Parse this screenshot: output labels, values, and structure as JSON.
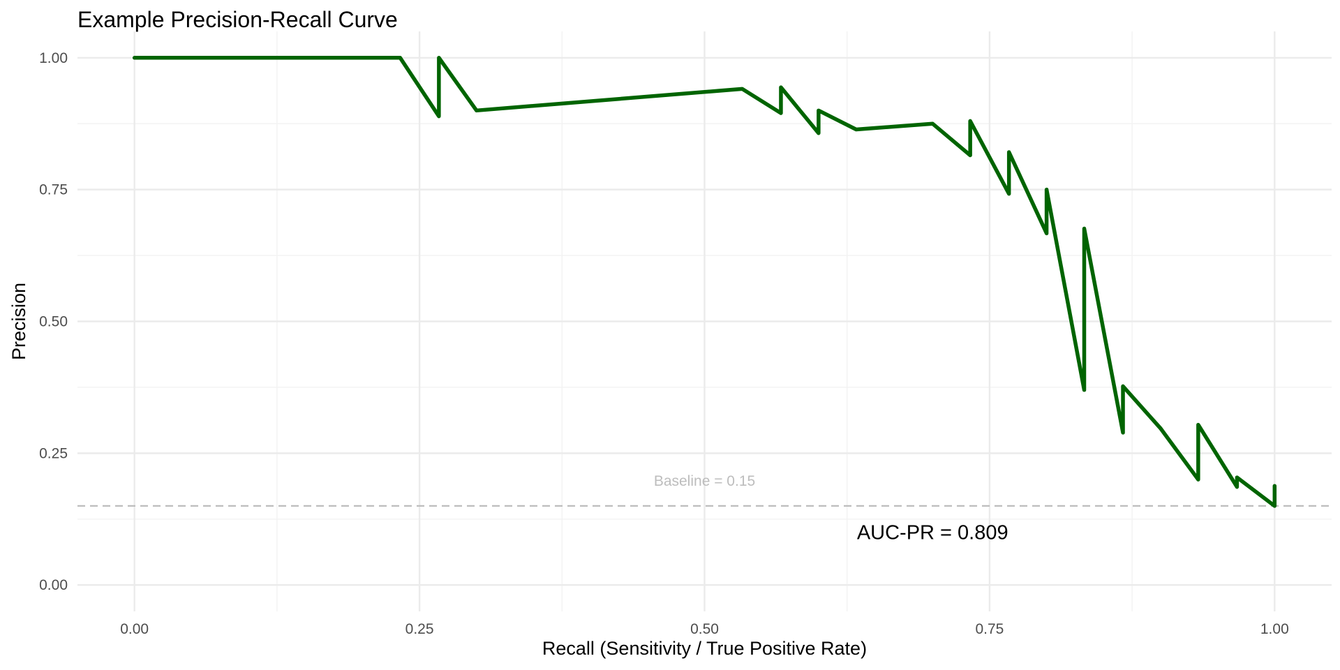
{
  "chart_data": {
    "type": "line",
    "title": "Example Precision-Recall Curve",
    "xlabel": "Recall (Sensitivity / True Positive Rate)",
    "ylabel": "Precision",
    "xlim": [
      -0.05,
      1.05
    ],
    "ylim": [
      -0.05,
      1.05
    ],
    "x_ticks": [
      0,
      0.25,
      0.5,
      0.75,
      1
    ],
    "x_tick_labels": [
      "0.00",
      "0.25",
      "0.50",
      "0.75",
      "1.00"
    ],
    "y_ticks": [
      0,
      0.25,
      0.5,
      0.75,
      1
    ],
    "y_tick_labels": [
      "0.00",
      "0.25",
      "0.50",
      "0.75",
      "1.00"
    ],
    "grid": true,
    "legend": "none",
    "series": [
      {
        "color": "#006400",
        "x": [
          0,
          0.233,
          0.267,
          0.267,
          0.3,
          0.533,
          0.567,
          0.567,
          0.6,
          0.6,
          0.633,
          0.7,
          0.733,
          0.733,
          0.767,
          0.767,
          0.8,
          0.8,
          0.833,
          0.833,
          0.867,
          0.867,
          0.9,
          0.933,
          0.933,
          0.967,
          0.967,
          1,
          1
        ],
        "y": [
          1,
          1,
          0.889,
          1,
          0.9,
          0.941,
          0.895,
          0.944,
          0.857,
          0.9,
          0.864,
          0.875,
          0.815,
          0.88,
          0.742,
          0.821,
          0.667,
          0.75,
          0.37,
          0.676,
          0.289,
          0.377,
          0.297,
          0.2,
          0.304,
          0.186,
          0.204,
          0.15,
          0.188
        ]
      }
    ],
    "baseline": {
      "value": 0.15,
      "label": "Baseline = 0.15",
      "color": "#bdbdbd",
      "label_x": 0.5
    },
    "annotation": {
      "text": "AUC-PR = 0.809",
      "x": 0.7,
      "y": 0.1
    }
  }
}
